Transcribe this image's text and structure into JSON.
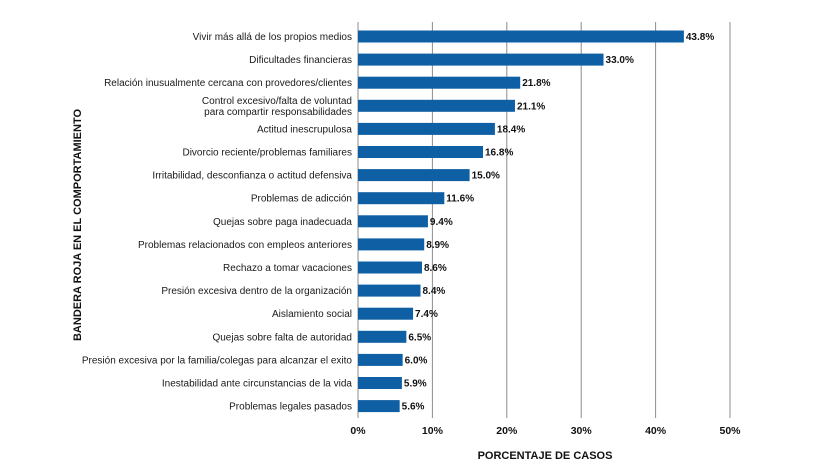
{
  "chart_data": {
    "type": "bar",
    "orientation": "horizontal",
    "categories": [
      "Vivir más allá de los propios medios",
      "Dificultades financieras",
      "Relación inusualmente cercana con provedores/clientes",
      "Control  excesivo/falta de voluntad\npara compartir responsabilidades",
      "Actitud inescrupulosa",
      "Divorcio reciente/problemas familiares",
      "Irritabilidad, desconfianza o actitud defensiva",
      "Problemas de adicción",
      "Quejas sobre paga inadecuada",
      "Problemas relacionados con empleos anteriores",
      "Rechazo a tomar vacaciones",
      "Presión excesiva dentro de la organización",
      "Aislamiento social",
      "Quejas sobre falta de autoridad",
      "Presión excesiva por la familia/colegas para alcanzar el exito",
      "Inestabilidad ante circunstancias de la vida",
      "Problemas legales pasados"
    ],
    "values": [
      43.8,
      33.0,
      21.8,
      21.1,
      18.4,
      16.8,
      15.0,
      11.6,
      9.4,
      8.9,
      8.6,
      8.4,
      7.4,
      6.5,
      6.0,
      5.9,
      5.6
    ],
    "value_labels": [
      "43.8%",
      "33.0%",
      "21.8%",
      "21.1%",
      "18.4%",
      "16.8%",
      "15.0%",
      "11.6%",
      "9.4%",
      "8.9%",
      "8.6%",
      "8.4%",
      "7.4%",
      "6.5%",
      "6.0%",
      "5.9%",
      "5.6%"
    ],
    "xlim": [
      0,
      50
    ],
    "xticks": [
      0,
      10,
      20,
      30,
      40,
      50
    ],
    "xtick_labels": [
      "0%",
      "10%",
      "20%",
      "30%",
      "40%",
      "50%"
    ],
    "xlabel": "PORCENTAJE DE CASOS",
    "ylabel": "BANDERA ROJA EN EL COMPORTAMIENTO",
    "grid": "vertical",
    "bar_color": "#0e5fa3",
    "grid_color": "#8c8c8c"
  }
}
